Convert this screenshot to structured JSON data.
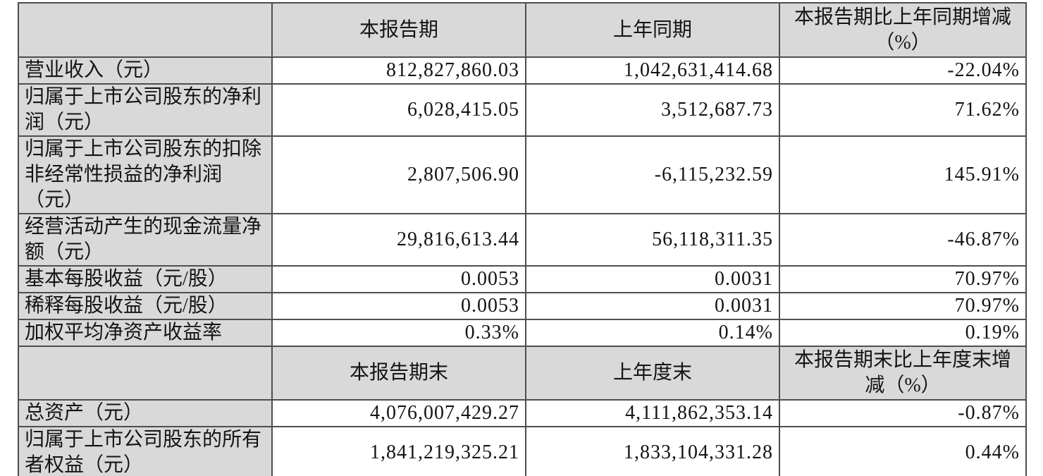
{
  "colors": {
    "header_bg": "#d9d9d9",
    "label_bg": "#d9d9d9",
    "cell_bg": "#ffffff",
    "border": "#4e4e4e",
    "text": "#141414"
  },
  "table": {
    "sections": [
      {
        "header": {
          "label": "",
          "current": "本报告期",
          "prior": "上年同期",
          "change": "本报告期比上年同期增减（%）"
        },
        "rows": [
          {
            "label": "营业收入（元）",
            "current": "812,827,860.03",
            "prior": "1,042,631,414.68",
            "change": "-22.04%"
          },
          {
            "label": "归属于上市公司股东的净利润（元）",
            "current": "6,028,415.05",
            "prior": "3,512,687.73",
            "change": "71.62%"
          },
          {
            "label": "归属于上市公司股东的扣除非经常性损益的净利润（元）",
            "current": "2,807,506.90",
            "prior": "-6,115,232.59",
            "change": "145.91%"
          },
          {
            "label": "经营活动产生的现金流量净额（元）",
            "current": "29,816,613.44",
            "prior": "56,118,311.35",
            "change": "-46.87%"
          },
          {
            "label": "基本每股收益（元/股）",
            "current": "0.0053",
            "prior": "0.0031",
            "change": "70.97%"
          },
          {
            "label": "稀释每股收益（元/股）",
            "current": "0.0053",
            "prior": "0.0031",
            "change": "70.97%"
          },
          {
            "label": "加权平均净资产收益率",
            "current": "0.33%",
            "prior": "0.14%",
            "change": "0.19%"
          }
        ]
      },
      {
        "header": {
          "label": "",
          "current": "本报告期末",
          "prior": "上年度末",
          "change": "本报告期末比上年度末增减（%）"
        },
        "rows": [
          {
            "label": "总资产（元）",
            "current": "4,076,007,429.27",
            "prior": "4,111,862,353.14",
            "change": "-0.87%"
          },
          {
            "label": "归属于上市公司股东的所有者权益（元）",
            "current": "1,841,219,325.21",
            "prior": "1,833,104,331.28",
            "change": "0.44%"
          }
        ]
      }
    ]
  }
}
